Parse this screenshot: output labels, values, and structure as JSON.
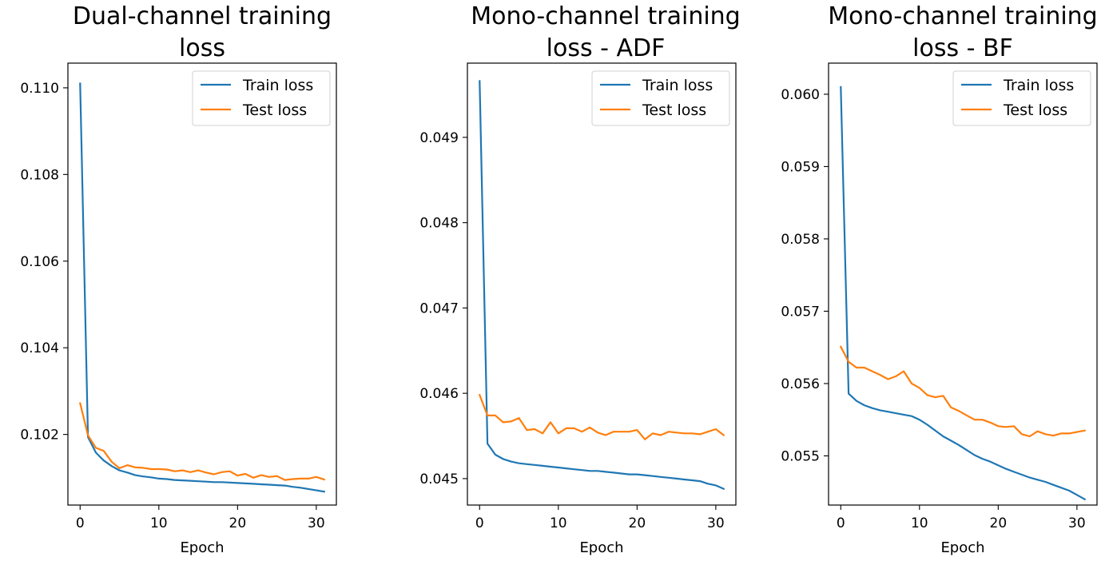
{
  "colors": {
    "train": "#1f77b4",
    "test": "#ff7f0e"
  },
  "chart_data": [
    {
      "type": "line",
      "title": [
        "Dual-channel training",
        "loss"
      ],
      "xlabel": "Epoch",
      "ylabel": "",
      "xlim": [
        -1.55,
        32.55
      ],
      "ylim": [
        0.10037,
        0.11057
      ],
      "xticks": [
        0,
        10,
        20,
        30
      ],
      "xtick_labels": [
        "0",
        "10",
        "20",
        "30"
      ],
      "yticks": [
        0.102,
        0.104,
        0.106,
        0.108,
        0.11
      ],
      "ytick_labels": [
        "0.102",
        "0.104",
        "0.106",
        "0.108",
        "0.110"
      ],
      "legend": {
        "location": "top-right",
        "entries": [
          "Train loss",
          "Test loss"
        ]
      },
      "series": [
        {
          "name": "Train loss",
          "color": "#1f77b4",
          "x": [
            0,
            1,
            2,
            3,
            4,
            5,
            6,
            7,
            8,
            9,
            10,
            11,
            12,
            13,
            14,
            15,
            16,
            17,
            18,
            19,
            20,
            21,
            22,
            23,
            24,
            25,
            26,
            27,
            28,
            29,
            30,
            31
          ],
          "y": [
            0.1101,
            0.10194,
            0.10158,
            0.1014,
            0.10127,
            0.10117,
            0.10112,
            0.10106,
            0.10103,
            0.10101,
            0.10098,
            0.10097,
            0.10095,
            0.10094,
            0.10093,
            0.10092,
            0.10091,
            0.1009,
            0.1009,
            0.10089,
            0.10088,
            0.10087,
            0.10086,
            0.10085,
            0.10084,
            0.10083,
            0.10082,
            0.10079,
            0.10077,
            0.10074,
            0.10071,
            0.10068
          ]
        },
        {
          "name": "Test loss",
          "color": "#ff7f0e",
          "x": [
            0,
            1,
            2,
            3,
            4,
            5,
            6,
            7,
            8,
            9,
            10,
            11,
            12,
            13,
            14,
            15,
            16,
            17,
            18,
            19,
            20,
            21,
            22,
            23,
            24,
            25,
            26,
            27,
            28,
            29,
            30,
            31
          ],
          "y": [
            0.10272,
            0.10198,
            0.10169,
            0.10162,
            0.10137,
            0.10122,
            0.10129,
            0.10124,
            0.10123,
            0.1012,
            0.1012,
            0.10119,
            0.10115,
            0.10117,
            0.10113,
            0.10117,
            0.10112,
            0.10108,
            0.10113,
            0.10115,
            0.10105,
            0.10109,
            0.101,
            0.10106,
            0.10102,
            0.10104,
            0.10095,
            0.10097,
            0.10098,
            0.10098,
            0.10102,
            0.10096
          ]
        }
      ]
    },
    {
      "type": "line",
      "title": [
        "Mono-channel training",
        "loss - ADF"
      ],
      "xlabel": "Epoch",
      "ylabel": "",
      "xlim": [
        -1.55,
        32.55
      ],
      "ylim": [
        0.04469,
        0.04987
      ],
      "xticks": [
        0,
        10,
        20,
        30
      ],
      "xtick_labels": [
        "0",
        "10",
        "20",
        "30"
      ],
      "yticks": [
        0.045,
        0.046,
        0.047,
        0.048,
        0.049
      ],
      "ytick_labels": [
        "0.045",
        "0.046",
        "0.047",
        "0.048",
        "0.049"
      ],
      "legend": {
        "location": "top-right",
        "entries": [
          "Train loss",
          "Test loss"
        ]
      },
      "series": [
        {
          "name": "Train loss",
          "color": "#1f77b4",
          "x": [
            0,
            1,
            2,
            3,
            4,
            5,
            6,
            7,
            8,
            9,
            10,
            11,
            12,
            13,
            14,
            15,
            16,
            17,
            18,
            19,
            20,
            21,
            22,
            23,
            24,
            25,
            26,
            27,
            28,
            29,
            30,
            31
          ],
          "y": [
            0.04966,
            0.04541,
            0.04528,
            0.04523,
            0.0452,
            0.04518,
            0.04517,
            0.04516,
            0.04515,
            0.04514,
            0.04513,
            0.04512,
            0.04511,
            0.0451,
            0.04509,
            0.04509,
            0.04508,
            0.04507,
            0.04506,
            0.04505,
            0.04505,
            0.04504,
            0.04503,
            0.04502,
            0.04501,
            0.045,
            0.04499,
            0.04498,
            0.04497,
            0.04494,
            0.04492,
            0.04488
          ]
        },
        {
          "name": "Test loss",
          "color": "#ff7f0e",
          "x": [
            0,
            1,
            2,
            3,
            4,
            5,
            6,
            7,
            8,
            9,
            10,
            11,
            12,
            13,
            14,
            15,
            16,
            17,
            18,
            19,
            20,
            21,
            22,
            23,
            24,
            25,
            26,
            27,
            28,
            29,
            30,
            31
          ],
          "y": [
            0.04598,
            0.04574,
            0.04574,
            0.04566,
            0.04567,
            0.04571,
            0.04557,
            0.04558,
            0.04553,
            0.04566,
            0.04553,
            0.04559,
            0.04559,
            0.04555,
            0.0456,
            0.04554,
            0.04551,
            0.04555,
            0.04555,
            0.04555,
            0.04557,
            0.04546,
            0.04553,
            0.04551,
            0.04555,
            0.04554,
            0.04553,
            0.04553,
            0.04552,
            0.04555,
            0.04558,
            0.04551
          ]
        }
      ]
    },
    {
      "type": "line",
      "title": [
        "Mono-channel training",
        "loss - BF"
      ],
      "xlabel": "Epoch",
      "ylabel": "",
      "xlim": [
        -1.55,
        32.55
      ],
      "ylim": [
        0.05432,
        0.06043
      ],
      "xticks": [
        0,
        10,
        20,
        30
      ],
      "xtick_labels": [
        "0",
        "10",
        "20",
        "30"
      ],
      "yticks": [
        0.055,
        0.056,
        0.057,
        0.058,
        0.059,
        0.06
      ],
      "ytick_labels": [
        "0.055",
        "0.056",
        "0.057",
        "0.058",
        "0.059",
        "0.060"
      ],
      "legend": {
        "location": "top-right",
        "entries": [
          "Train loss",
          "Test loss"
        ]
      },
      "series": [
        {
          "name": "Train loss",
          "color": "#1f77b4",
          "x": [
            0,
            1,
            2,
            3,
            4,
            5,
            6,
            7,
            8,
            9,
            10,
            11,
            12,
            13,
            14,
            15,
            16,
            17,
            18,
            19,
            20,
            21,
            22,
            23,
            24,
            25,
            26,
            27,
            28,
            29,
            30,
            31
          ],
          "y": [
            0.0601,
            0.05586,
            0.05576,
            0.0557,
            0.05566,
            0.05563,
            0.05561,
            0.05559,
            0.05557,
            0.05555,
            0.0555,
            0.05543,
            0.05535,
            0.05527,
            0.05521,
            0.05515,
            0.05508,
            0.05501,
            0.05496,
            0.05492,
            0.05487,
            0.05482,
            0.05478,
            0.05474,
            0.0547,
            0.05467,
            0.05464,
            0.0546,
            0.05456,
            0.05452,
            0.05446,
            0.0544
          ]
        },
        {
          "name": "Test loss",
          "color": "#ff7f0e",
          "x": [
            0,
            1,
            2,
            3,
            4,
            5,
            6,
            7,
            8,
            9,
            10,
            11,
            12,
            13,
            14,
            15,
            16,
            17,
            18,
            19,
            20,
            21,
            22,
            23,
            24,
            25,
            26,
            27,
            28,
            29,
            30,
            31
          ],
          "y": [
            0.05651,
            0.0563,
            0.05622,
            0.05622,
            0.05617,
            0.05612,
            0.05606,
            0.0561,
            0.05617,
            0.056,
            0.05594,
            0.05584,
            0.05581,
            0.05583,
            0.05567,
            0.05562,
            0.05556,
            0.0555,
            0.0555,
            0.05546,
            0.05541,
            0.0554,
            0.05541,
            0.0553,
            0.05527,
            0.05534,
            0.0553,
            0.05528,
            0.05531,
            0.05531,
            0.05533,
            0.05535
          ]
        }
      ]
    }
  ]
}
